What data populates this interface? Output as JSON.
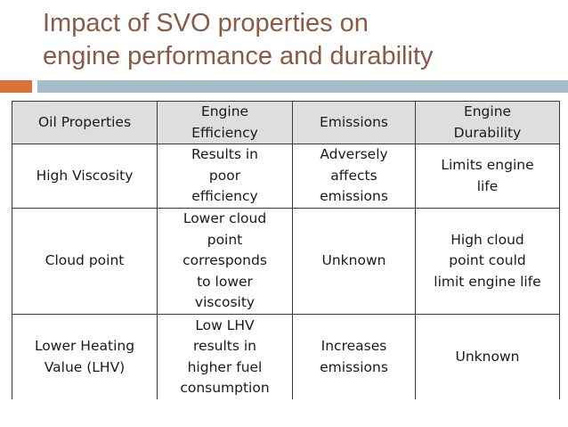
{
  "slide": {
    "title_lines": [
      "Impact of SVO properties on",
      "engine performance and durability"
    ]
  },
  "table": {
    "headers": [
      [
        "Oil Properties"
      ],
      [
        "Engine",
        "Efficiency"
      ],
      [
        "Emissions"
      ],
      [
        "Engine",
        "Durability"
      ]
    ],
    "rows": [
      [
        [
          "High Viscosity"
        ],
        [
          "Results in",
          "poor",
          "efficiency"
        ],
        [
          "Adversely",
          "affects",
          "emissions"
        ],
        [
          "Limits engine",
          "life"
        ]
      ],
      [
        [
          "Cloud point"
        ],
        [
          "Lower cloud",
          "point",
          "corresponds",
          "to lower",
          "viscosity"
        ],
        [
          "Unknown"
        ],
        [
          "High cloud",
          "point could",
          "limit engine life"
        ]
      ],
      [
        [
          "Lower Heating",
          "Value (LHV)"
        ],
        [
          "Low LHV",
          "results in",
          "higher fuel",
          "consumption"
        ],
        [
          "Increases",
          "emissions"
        ],
        [
          "Unknown"
        ]
      ]
    ]
  },
  "colors": {
    "title": "#8a5a44",
    "accent_orange": "#d8733a",
    "accent_gray": "#a7bdc9",
    "header_bg": "#dedede",
    "border": "#3a3a3a"
  }
}
